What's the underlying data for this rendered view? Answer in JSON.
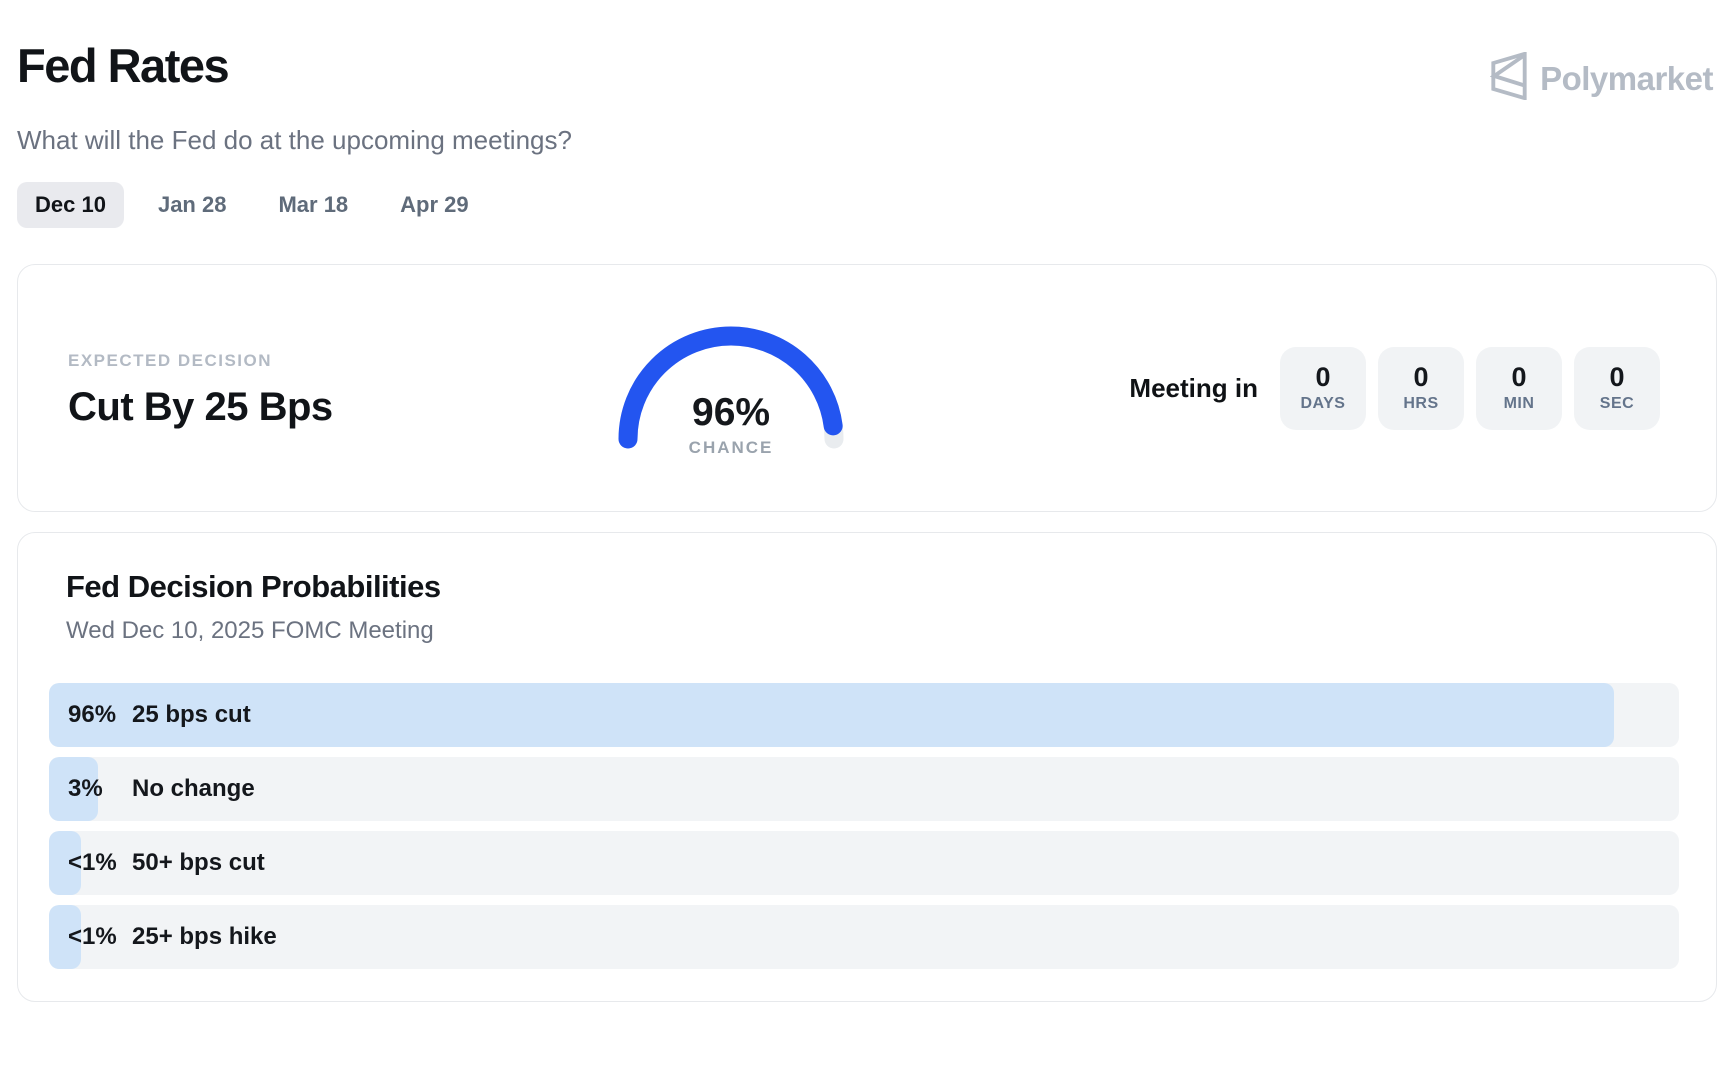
{
  "page": {
    "title": "Fed Rates",
    "subtitle": "What will the Fed do at the upcoming meetings?"
  },
  "brand": {
    "name": "Polymarket",
    "color": "#b4bbc5"
  },
  "tabs": [
    {
      "label": "Dec 10",
      "selected": true
    },
    {
      "label": "Jan 28",
      "selected": false
    },
    {
      "label": "Mar 18",
      "selected": false
    },
    {
      "label": "Apr 29",
      "selected": false
    }
  ],
  "expected": {
    "eyebrow": "EXPECTED DECISION",
    "decision": "Cut By 25 Bps"
  },
  "gauge": {
    "value_pct": 96,
    "value_label": "96%",
    "caption": "CHANCE",
    "arc_color": "#2355f0",
    "track_color": "#e9ecef"
  },
  "countdown": {
    "label": "Meeting in",
    "units": [
      {
        "value": "0",
        "unit": "DAYS"
      },
      {
        "value": "0",
        "unit": "HRS"
      },
      {
        "value": "0",
        "unit": "MIN"
      },
      {
        "value": "0",
        "unit": "SEC"
      }
    ]
  },
  "probabilities": {
    "title": "Fed Decision Probabilities",
    "subtitle": "Wed Dec 10, 2025 FOMC Meeting",
    "fill_color": "#cfe3f8",
    "track_color": "#f2f4f6",
    "rows": [
      {
        "pct_label": "96%",
        "pct": 96,
        "outcome": "25 bps cut"
      },
      {
        "pct_label": "3%",
        "pct": 3,
        "outcome": "No change"
      },
      {
        "pct_label": "<1%",
        "pct": 1,
        "outcome": "50+ bps cut"
      },
      {
        "pct_label": "<1%",
        "pct": 1,
        "outcome": "25+ bps hike"
      }
    ]
  },
  "chart_data": [
    {
      "type": "bar",
      "orientation": "horizontal",
      "title": "Fed Decision Probabilities",
      "subtitle": "Wed Dec 10, 2025 FOMC Meeting",
      "categories": [
        "25 bps cut",
        "No change",
        "50+ bps cut",
        "25+ bps hike"
      ],
      "values": [
        96,
        3,
        0.5,
        0.5
      ],
      "value_labels": [
        "96%",
        "3%",
        "<1%",
        "<1%"
      ],
      "xlim": [
        0,
        100
      ],
      "unit": "%",
      "grid": false,
      "legend": false
    },
    {
      "type": "gauge",
      "title": "Expected decision chance",
      "value": 96,
      "value_label": "96%",
      "caption": "CHANCE",
      "range": [
        0,
        100
      ]
    }
  ]
}
